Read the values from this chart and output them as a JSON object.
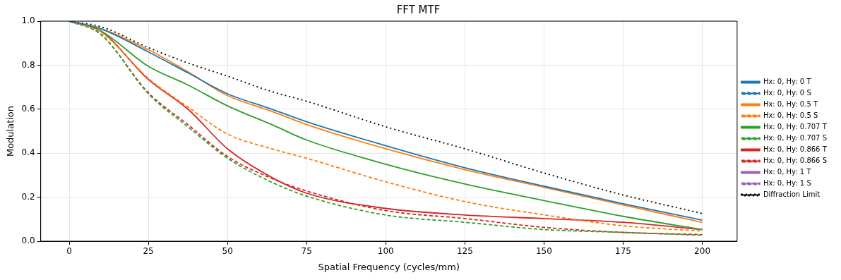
{
  "chart_data": {
    "type": "line",
    "title": "FFT MTF",
    "xlabel": "Spatial Frequency (cycles/mm)",
    "ylabel": "Modulation",
    "x": [
      0,
      10,
      25,
      37.5,
      50,
      64,
      75,
      100,
      125,
      150,
      175,
      200
    ],
    "xlim": [
      -9,
      211
    ],
    "xticks": [
      0,
      25,
      50,
      75,
      100,
      125,
      150,
      175,
      200
    ],
    "ylim": [
      0,
      1
    ],
    "yticks": [
      {
        "value": 0,
        "label": "0.0"
      },
      {
        "value": 0.2,
        "label": "0.2"
      },
      {
        "value": 0.4,
        "label": "0.4"
      },
      {
        "value": 0.6,
        "label": "0.6"
      },
      {
        "value": 0.8,
        "label": "0.8"
      },
      {
        "value": 1,
        "label": "1.0"
      }
    ],
    "grid": true,
    "legend": "right",
    "marker": "none",
    "series": [
      {
        "name": "Hx: 0, Hy: 0 T",
        "color": "#1f77b4",
        "line_style": "solid",
        "values": [
          1,
          0.965,
          0.86,
          0.765,
          0.67,
          0.6,
          0.543,
          0.434,
          0.334,
          0.25,
          0.17,
          0.096
        ]
      },
      {
        "name": "Hx: 0, Hy: 0 S",
        "color": "#1f77b4",
        "line_style": "dashed",
        "values": [
          null,
          null,
          null,
          null,
          null,
          null,
          null,
          null,
          null,
          null,
          null,
          null
        ]
      },
      {
        "name": "Hx: 0, Hy: 0.5 T",
        "color": "#ff7f0e",
        "line_style": "solid",
        "values": [
          1,
          0.967,
          0.87,
          0.77,
          0.662,
          0.59,
          0.53,
          0.42,
          0.325,
          0.245,
          0.165,
          0.085
        ]
      },
      {
        "name": "Hx: 0, Hy: 0.5 S",
        "color": "#ff7f0e",
        "line_style": "dashed",
        "values": [
          1,
          0.95,
          0.74,
          0.61,
          0.487,
          0.42,
          0.377,
          0.27,
          0.18,
          0.12,
          0.07,
          0.046
        ]
      },
      {
        "name": "Hx: 0, Hy: 0.707 T",
        "color": "#2ca02c",
        "line_style": "solid",
        "values": [
          1,
          0.955,
          0.795,
          0.71,
          0.615,
          0.53,
          0.46,
          0.35,
          0.26,
          0.185,
          0.113,
          0.053
        ]
      },
      {
        "name": "Hx: 0, Hy: 0.707 S",
        "color": "#2ca02c",
        "line_style": "dashed",
        "values": [
          1,
          0.94,
          0.67,
          0.52,
          0.377,
          0.268,
          0.205,
          0.119,
          0.086,
          0.053,
          0.04,
          0.027
        ]
      },
      {
        "name": "Hx: 0, Hy: 0.866 T",
        "color": "#d62728",
        "line_style": "solid",
        "values": [
          1,
          0.955,
          0.735,
          0.6,
          0.42,
          0.29,
          0.218,
          0.149,
          0.119,
          0.103,
          0.086,
          0.053
        ]
      },
      {
        "name": "Hx: 0, Hy: 0.866 S",
        "color": "#d62728",
        "line_style": "dashed",
        "values": [
          1,
          0.94,
          0.675,
          0.53,
          0.385,
          0.285,
          0.228,
          0.139,
          0.103,
          0.063,
          0.04,
          0.03
        ]
      },
      {
        "name": "Hx: 0, Hy: 1 T",
        "color": "#9467bd",
        "line_style": "solid",
        "values": [
          null,
          null,
          null,
          null,
          null,
          null,
          null,
          null,
          null,
          null,
          null,
          null
        ]
      },
      {
        "name": "Hx: 0, Hy: 1 S",
        "color": "#9467bd",
        "line_style": "dashed",
        "values": [
          null,
          null,
          null,
          null,
          null,
          null,
          null,
          null,
          null,
          null,
          null,
          null
        ]
      },
      {
        "name": "Diffraction Limit",
        "color": "#000000",
        "line_style": "dotted",
        "values": [
          1,
          0.975,
          0.88,
          0.81,
          0.75,
          0.68,
          0.636,
          0.52,
          0.42,
          0.31,
          0.21,
          0.126
        ]
      }
    ]
  }
}
